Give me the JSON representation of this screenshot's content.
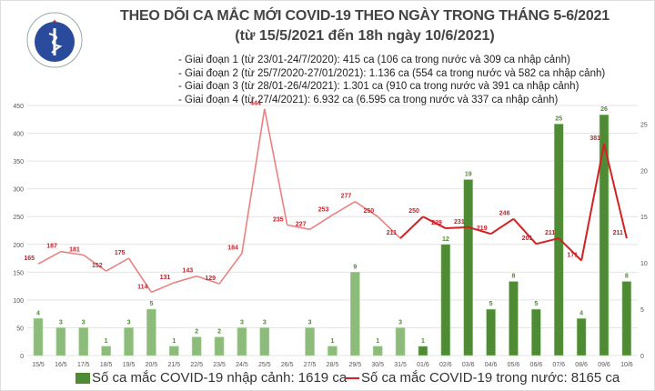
{
  "logo_text": "BỘ Y TẾ · MINISTRY OF HEALTH",
  "title_line1": "THEO DÕI CA MẮC MỚI COVID-19 THEO NGÀY TRONG THÁNG 5-6/2021",
  "title_line2": "(từ 15/5/2021 đến 18h ngày 10/6/2021)",
  "phases": [
    "- Giai đoạn 1 (từ 23/01-24/7/2020): 415 ca (106 ca trong nước và 309 ca nhập cảnh)",
    "- Giai đoạn 2 (từ 25/7/2020-27/01/2021): 1.136 ca (554 ca trong nước và 582 ca nhập cảnh)",
    "- Giai đoạn 3 (từ 28/01-26/4/2021): 1.301 ca (910 ca trong nước và 391 ca nhập cảnh)",
    "- Giai đoạn 4 (từ 27/4/2021): 6.932 ca (6.595 ca trong nước và 337 ca nhập cảnh)"
  ],
  "chart_data": {
    "type": "bar+line",
    "categories": [
      "15/5",
      "16/5",
      "17/5",
      "18/5",
      "19/5",
      "20/5",
      "21/5",
      "22/5",
      "23/5",
      "24/5",
      "25/5",
      "26/5",
      "27/5",
      "28/5",
      "29/5",
      "30/5",
      "31/5",
      "01/6",
      "02/6",
      "03/6",
      "04/6",
      "05/6",
      "06/6",
      "07/6",
      "08/6",
      "09/6",
      "10/6"
    ],
    "series": [
      {
        "name": "Số ca mắc COVID-19 nhập cảnh: 1619 ca",
        "type": "bar",
        "axis": "right",
        "values": [
          4,
          3,
          3,
          1,
          3,
          5,
          1,
          2,
          2,
          3,
          3,
          0,
          3,
          1,
          9,
          1,
          3,
          1,
          12,
          19,
          5,
          8,
          5,
          25,
          4,
          26,
          8
        ],
        "color": "#4f8a35",
        "color_faded": "#8dbb7c"
      },
      {
        "name": "Số ca mắc COVID-19 trong nước: 8165 ca",
        "type": "line",
        "axis": "left",
        "values": [
          165,
          187,
          181,
          152,
          175,
          114,
          131,
          143,
          129,
          184,
          444,
          235,
          227,
          253,
          277,
          250,
          211,
          250,
          229,
          231,
          219,
          246,
          201,
          211,
          171,
          381,
          211
        ],
        "color": "#d42020",
        "color_faded": "#ec8080"
      }
    ],
    "faded_until": "31/5",
    "left_axis": {
      "ylim": [
        0,
        450
      ],
      "ticks": [
        "0",
        "50",
        "100",
        "150",
        "200",
        "250",
        "300",
        "350",
        "400",
        "450"
      ]
    },
    "right_axis": {
      "ylim": [
        0,
        27
      ],
      "ticks": [
        "0",
        "5",
        "10",
        "15",
        "20",
        "25"
      ]
    },
    "grid": true,
    "legend": "bottom"
  }
}
